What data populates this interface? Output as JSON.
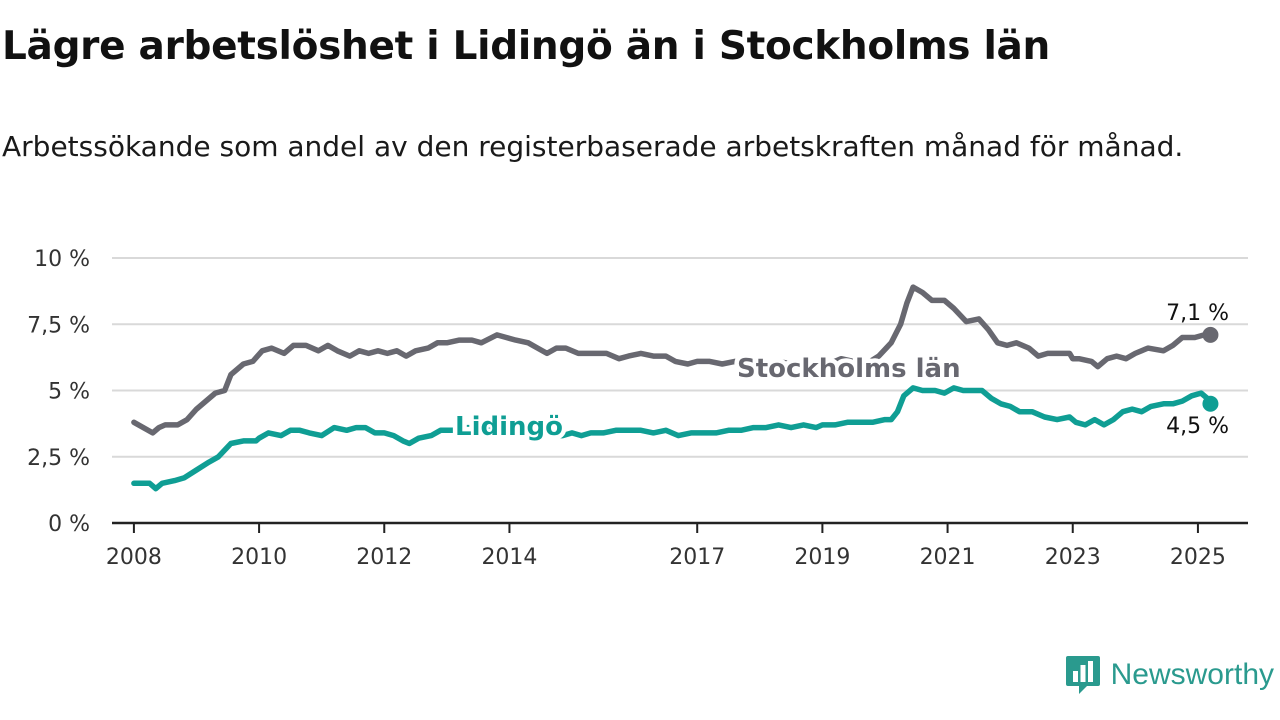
{
  "title": "Lägre arbetslöshet i Lidingö än i Stockholms län",
  "subtitle": "Arbetssökande som andel av den registerbaserade arbetskraften månad för månad.",
  "brand": {
    "name": "Newsworthy",
    "icon": "newsworthy-logo-icon"
  },
  "colors": {
    "stockholm": "#686870",
    "lidingo": "#0f9e94",
    "grid": "#d9d9d9",
    "axis": "#222222"
  },
  "chart_data": {
    "type": "line",
    "title": "Lägre arbetslöshet i Lidingö än i Stockholms län",
    "ylim": [
      0,
      10
    ],
    "xlim": [
      2007.85,
      2025.95
    ],
    "y_ticks": [
      {
        "value": 0,
        "label": "0 %"
      },
      {
        "value": 2.5,
        "label": "2,5 %"
      },
      {
        "value": 5,
        "label": "5 %"
      },
      {
        "value": 7.5,
        "label": "7,5 %"
      },
      {
        "value": 10,
        "label": "10 %"
      }
    ],
    "x_ticks": [
      {
        "value": 2008,
        "label": "2008"
      },
      {
        "value": 2010,
        "label": "2010"
      },
      {
        "value": 2012,
        "label": "2012"
      },
      {
        "value": 2014,
        "label": "2014"
      },
      {
        "value": 2017,
        "label": "2017"
      },
      {
        "value": 2019,
        "label": "2019"
      },
      {
        "value": 2021,
        "label": "2021"
      },
      {
        "value": 2023,
        "label": "2023"
      },
      {
        "value": 2025,
        "label": "2025"
      }
    ],
    "grid": true,
    "series": [
      {
        "name": "Stockholms län",
        "end_label": "7,1 %",
        "points": [
          [
            2008.0,
            3.8
          ],
          [
            2008.3,
            3.4
          ],
          [
            2008.4,
            3.6
          ],
          [
            2008.5,
            3.7
          ],
          [
            2008.7,
            3.7
          ],
          [
            2008.85,
            3.9
          ],
          [
            2009.0,
            4.3
          ],
          [
            2009.3,
            4.9
          ],
          [
            2009.45,
            5.0
          ],
          [
            2009.55,
            5.6
          ],
          [
            2009.75,
            6.0
          ],
          [
            2009.9,
            6.1
          ],
          [
            2010.05,
            6.5
          ],
          [
            2010.2,
            6.6
          ],
          [
            2010.4,
            6.4
          ],
          [
            2010.55,
            6.7
          ],
          [
            2010.75,
            6.7
          ],
          [
            2010.95,
            6.5
          ],
          [
            2011.1,
            6.7
          ],
          [
            2011.25,
            6.5
          ],
          [
            2011.45,
            6.3
          ],
          [
            2011.6,
            6.5
          ],
          [
            2011.75,
            6.4
          ],
          [
            2011.9,
            6.5
          ],
          [
            2012.05,
            6.4
          ],
          [
            2012.2,
            6.5
          ],
          [
            2012.35,
            6.3
          ],
          [
            2012.5,
            6.5
          ],
          [
            2012.7,
            6.6
          ],
          [
            2012.85,
            6.8
          ],
          [
            2013.0,
            6.8
          ],
          [
            2013.2,
            6.9
          ],
          [
            2013.4,
            6.9
          ],
          [
            2013.55,
            6.8
          ],
          [
            2013.8,
            7.1
          ],
          [
            2013.95,
            7.0
          ],
          [
            2014.1,
            6.9
          ],
          [
            2014.3,
            6.8
          ],
          [
            2014.45,
            6.6
          ],
          [
            2014.6,
            6.4
          ],
          [
            2014.75,
            6.6
          ],
          [
            2014.9,
            6.6
          ],
          [
            2015.1,
            6.4
          ],
          [
            2015.3,
            6.4
          ],
          [
            2015.55,
            6.4
          ],
          [
            2015.75,
            6.2
          ],
          [
            2015.9,
            6.3
          ],
          [
            2016.1,
            6.4
          ],
          [
            2016.3,
            6.3
          ],
          [
            2016.5,
            6.3
          ],
          [
            2016.65,
            6.1
          ],
          [
            2016.85,
            6.0
          ],
          [
            2017.0,
            6.1
          ],
          [
            2017.2,
            6.1
          ],
          [
            2017.4,
            6.0
          ],
          [
            2017.6,
            6.1
          ],
          [
            2017.75,
            5.9
          ],
          [
            2017.9,
            6.0
          ],
          [
            2018.1,
            6.0
          ],
          [
            2018.3,
            6.1
          ],
          [
            2018.5,
            6.0
          ],
          [
            2018.7,
            6.0
          ],
          [
            2018.9,
            6.1
          ],
          [
            2019.1,
            6.0
          ],
          [
            2019.3,
            6.2
          ],
          [
            2019.5,
            6.1
          ],
          [
            2019.7,
            6.0
          ],
          [
            2019.9,
            6.3
          ],
          [
            2020.1,
            6.8
          ],
          [
            2020.25,
            7.5
          ],
          [
            2020.35,
            8.3
          ],
          [
            2020.45,
            8.9
          ],
          [
            2020.6,
            8.7
          ],
          [
            2020.75,
            8.4
          ],
          [
            2020.95,
            8.4
          ],
          [
            2021.1,
            8.1
          ],
          [
            2021.3,
            7.6
          ],
          [
            2021.5,
            7.7
          ],
          [
            2021.65,
            7.3
          ],
          [
            2021.8,
            6.8
          ],
          [
            2021.95,
            6.7
          ],
          [
            2022.1,
            6.8
          ],
          [
            2022.3,
            6.6
          ],
          [
            2022.45,
            6.3
          ],
          [
            2022.6,
            6.4
          ],
          [
            2022.8,
            6.4
          ],
          [
            2022.95,
            6.4
          ],
          [
            2023.0,
            6.2
          ],
          [
            2023.1,
            6.2
          ],
          [
            2023.3,
            6.1
          ],
          [
            2023.4,
            5.9
          ],
          [
            2023.55,
            6.2
          ],
          [
            2023.7,
            6.3
          ],
          [
            2023.85,
            6.2
          ],
          [
            2024.0,
            6.4
          ],
          [
            2024.2,
            6.6
          ],
          [
            2024.45,
            6.5
          ],
          [
            2024.6,
            6.7
          ],
          [
            2024.75,
            7.0
          ],
          [
            2024.95,
            7.0
          ],
          [
            2025.1,
            7.1
          ],
          [
            2025.2,
            7.1
          ]
        ]
      },
      {
        "name": "Lidingö",
        "end_label": "4,5 %",
        "points": [
          [
            2008.0,
            1.5
          ],
          [
            2008.25,
            1.5
          ],
          [
            2008.35,
            1.3
          ],
          [
            2008.45,
            1.5
          ],
          [
            2008.65,
            1.6
          ],
          [
            2008.8,
            1.7
          ],
          [
            2009.0,
            2.0
          ],
          [
            2009.2,
            2.3
          ],
          [
            2009.35,
            2.5
          ],
          [
            2009.55,
            3.0
          ],
          [
            2009.75,
            3.1
          ],
          [
            2009.95,
            3.1
          ],
          [
            2010.0,
            3.2
          ],
          [
            2010.15,
            3.4
          ],
          [
            2010.35,
            3.3
          ],
          [
            2010.5,
            3.5
          ],
          [
            2010.65,
            3.5
          ],
          [
            2010.8,
            3.4
          ],
          [
            2011.0,
            3.3
          ],
          [
            2011.2,
            3.6
          ],
          [
            2011.4,
            3.5
          ],
          [
            2011.55,
            3.6
          ],
          [
            2011.7,
            3.6
          ],
          [
            2011.85,
            3.4
          ],
          [
            2012.0,
            3.4
          ],
          [
            2012.15,
            3.3
          ],
          [
            2012.3,
            3.1
          ],
          [
            2012.4,
            3.0
          ],
          [
            2012.55,
            3.2
          ],
          [
            2012.75,
            3.3
          ],
          [
            2012.9,
            3.5
          ],
          [
            2013.1,
            3.5
          ],
          [
            2013.3,
            3.6
          ],
          [
            2013.5,
            3.6
          ],
          [
            2013.7,
            3.5
          ],
          [
            2013.9,
            3.5
          ],
          [
            2014.1,
            3.4
          ],
          [
            2014.3,
            3.4
          ],
          [
            2014.5,
            3.4
          ],
          [
            2014.7,
            3.3
          ],
          [
            2014.85,
            3.3
          ],
          [
            2015.0,
            3.4
          ],
          [
            2015.15,
            3.3
          ],
          [
            2015.3,
            3.4
          ],
          [
            2015.5,
            3.4
          ],
          [
            2015.7,
            3.5
          ],
          [
            2015.9,
            3.5
          ],
          [
            2016.1,
            3.5
          ],
          [
            2016.3,
            3.4
          ],
          [
            2016.5,
            3.5
          ],
          [
            2016.7,
            3.3
          ],
          [
            2016.9,
            3.4
          ],
          [
            2017.1,
            3.4
          ],
          [
            2017.3,
            3.4
          ],
          [
            2017.5,
            3.5
          ],
          [
            2017.7,
            3.5
          ],
          [
            2017.9,
            3.6
          ],
          [
            2018.1,
            3.6
          ],
          [
            2018.3,
            3.7
          ],
          [
            2018.5,
            3.6
          ],
          [
            2018.7,
            3.7
          ],
          [
            2018.9,
            3.6
          ],
          [
            2019.0,
            3.7
          ],
          [
            2019.2,
            3.7
          ],
          [
            2019.4,
            3.8
          ],
          [
            2019.6,
            3.8
          ],
          [
            2019.8,
            3.8
          ],
          [
            2020.0,
            3.9
          ],
          [
            2020.1,
            3.9
          ],
          [
            2020.2,
            4.2
          ],
          [
            2020.3,
            4.8
          ],
          [
            2020.45,
            5.1
          ],
          [
            2020.6,
            5.0
          ],
          [
            2020.8,
            5.0
          ],
          [
            2020.95,
            4.9
          ],
          [
            2021.1,
            5.1
          ],
          [
            2021.25,
            5.0
          ],
          [
            2021.4,
            5.0
          ],
          [
            2021.55,
            5.0
          ],
          [
            2021.7,
            4.7
          ],
          [
            2021.85,
            4.5
          ],
          [
            2022.0,
            4.4
          ],
          [
            2022.15,
            4.2
          ],
          [
            2022.35,
            4.2
          ],
          [
            2022.55,
            4.0
          ],
          [
            2022.75,
            3.9
          ],
          [
            2022.95,
            4.0
          ],
          [
            2023.05,
            3.8
          ],
          [
            2023.2,
            3.7
          ],
          [
            2023.35,
            3.9
          ],
          [
            2023.5,
            3.7
          ],
          [
            2023.65,
            3.9
          ],
          [
            2023.8,
            4.2
          ],
          [
            2023.95,
            4.3
          ],
          [
            2024.1,
            4.2
          ],
          [
            2024.25,
            4.4
          ],
          [
            2024.45,
            4.5
          ],
          [
            2024.6,
            4.5
          ],
          [
            2024.75,
            4.6
          ],
          [
            2024.9,
            4.8
          ],
          [
            2025.05,
            4.9
          ],
          [
            2025.15,
            4.7
          ],
          [
            2025.2,
            4.5
          ]
        ]
      }
    ]
  }
}
